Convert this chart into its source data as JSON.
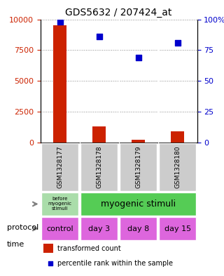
{
  "title": "GDS5632 / 207424_at",
  "samples": [
    "GSM1328177",
    "GSM1328178",
    "GSM1328179",
    "GSM1328180"
  ],
  "transformed_counts": [
    9500,
    1300,
    200,
    900
  ],
  "percentile_ranks": [
    9800,
    8600,
    6900,
    8100
  ],
  "ylim_left": [
    0,
    10000
  ],
  "ylim_right": [
    0,
    10000
  ],
  "yticks_left": [
    0,
    2500,
    5000,
    7500,
    10000
  ],
  "ytick_labels_left": [
    "0",
    "2500",
    "5000",
    "7500",
    "10000"
  ],
  "ytick_labels_right": [
    "0",
    "25",
    "50",
    "75",
    "100%"
  ],
  "bar_color": "#cc2200",
  "scatter_color": "#0000cc",
  "protocol_labels": [
    "before\nmyogenic\nstimuli",
    "myogenic stimuli"
  ],
  "protocol_colors": [
    "#aaddaa",
    "#55cc55"
  ],
  "time_labels": [
    "control",
    "day 3",
    "day 8",
    "day 15"
  ],
  "time_color": "#dd66dd",
  "legend_bar_color": "#cc2200",
  "legend_scatter_color": "#0000cc",
  "grid_color": "#888888",
  "bg_color": "#ffffff",
  "sample_bg_color": "#cccccc"
}
